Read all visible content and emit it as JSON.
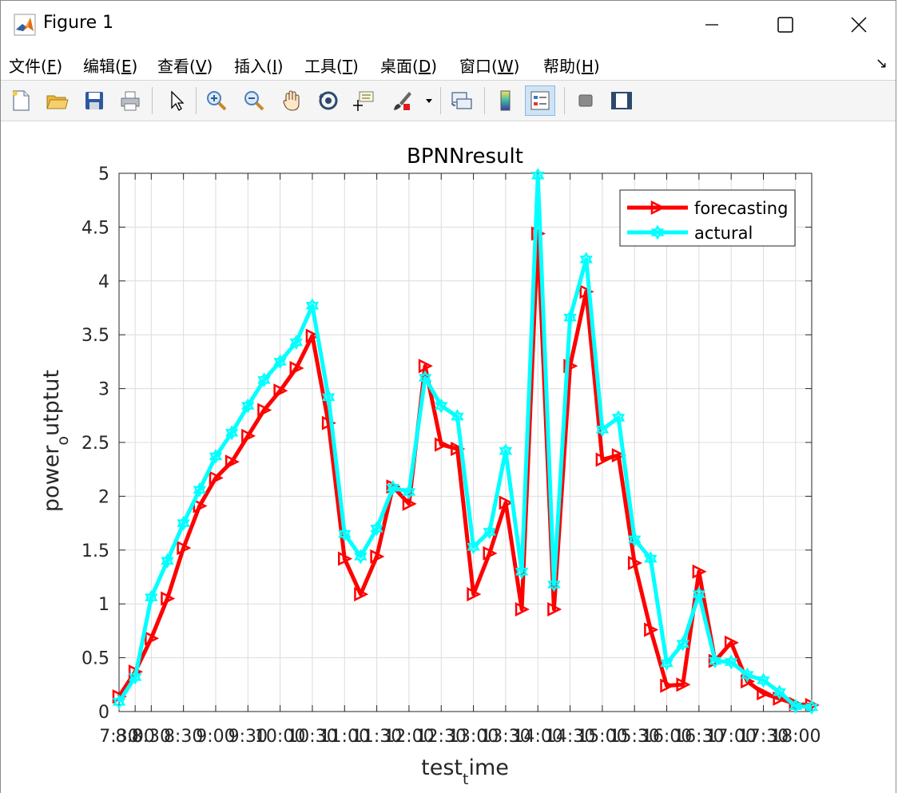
{
  "window": {
    "title": "Figure 1",
    "minimize_icon": "minimize-icon",
    "maximize_icon": "maximize-icon",
    "close_icon": "close-icon"
  },
  "menu": {
    "items": [
      {
        "label": "文件(",
        "key": "F",
        "suffix": ")"
      },
      {
        "label": "编辑(",
        "key": "E",
        "suffix": ")"
      },
      {
        "label": "查看(",
        "key": "V",
        "suffix": ")"
      },
      {
        "label": "插入(",
        "key": "I",
        "suffix": ")"
      },
      {
        "label": "工具(",
        "key": "T",
        "suffix": ")"
      },
      {
        "label": "桌面(",
        "key": "D",
        "suffix": ")"
      },
      {
        "label": "窗口(",
        "key": "W",
        "suffix": ")"
      },
      {
        "label": "帮助(",
        "key": "H",
        "suffix": ")"
      }
    ],
    "dock_glyph": "↘"
  },
  "toolbar": {
    "buttons": [
      "new-figure-icon",
      "open-file-icon",
      "save-icon",
      "print-icon",
      "edit-plot-icon",
      "zoom-in-icon",
      "zoom-out-icon",
      "pan-icon",
      "rotate-3d-icon",
      "data-cursor-icon",
      "brush-icon",
      "link-plot-icon",
      "colorbar-icon",
      "legend-icon",
      "hide-plot-tools-icon",
      "show-plot-tools-icon"
    ]
  },
  "chart_data": {
    "type": "line",
    "title": "BPNNresult",
    "xlabel_main": "test",
    "xlabel_sub": "t",
    "xlabel_rest": "ime",
    "ylabel_main": "power",
    "ylabel_sub": "o",
    "ylabel_rest": "utptut",
    "ylim": [
      0,
      5
    ],
    "xlim": [
      1,
      44
    ],
    "yticks": [
      "0",
      "0.5",
      "1",
      "1.5",
      "2",
      "2.5",
      "3",
      "3.5",
      "4",
      "4.5",
      "5"
    ],
    "xticks": [
      {
        "x": 1,
        "label": "7:30"
      },
      {
        "x": 2,
        "label": "8:00"
      },
      {
        "x": 3,
        "label": "8:30"
      },
      {
        "x": 5,
        "label": "8:30"
      },
      {
        "x": 7,
        "label": "9:00"
      },
      {
        "x": 9,
        "label": "9:30"
      },
      {
        "x": 11,
        "label": "10:00"
      },
      {
        "x": 13,
        "label": "10:30"
      },
      {
        "x": 15,
        "label": "11:00"
      },
      {
        "x": 17,
        "label": "11:30"
      },
      {
        "x": 19,
        "label": "12:00"
      },
      {
        "x": 21,
        "label": "12:30"
      },
      {
        "x": 23,
        "label": "13:00"
      },
      {
        "x": 25,
        "label": "13:30"
      },
      {
        "x": 27,
        "label": "14:00"
      },
      {
        "x": 29,
        "label": "14:30"
      },
      {
        "x": 31,
        "label": "15:00"
      },
      {
        "x": 33,
        "label": "15:30"
      },
      {
        "x": 35,
        "label": "16:00"
      },
      {
        "x": 37,
        "label": "16:30"
      },
      {
        "x": 39,
        "label": "17:00"
      },
      {
        "x": 41,
        "label": "17:30"
      },
      {
        "x": 43,
        "label": "18:00"
      }
    ],
    "grid": true,
    "legend_position": "top-right",
    "series": [
      {
        "name": "forecasting",
        "color": "#ff0000",
        "marker": "triangle-right",
        "x": [
          1,
          2,
          3,
          4,
          5,
          6,
          7,
          8,
          9,
          10,
          11,
          12,
          13,
          14,
          15,
          16,
          17,
          18,
          19,
          20,
          21,
          22,
          23,
          24,
          25,
          26,
          27,
          28,
          29,
          30,
          31,
          32,
          33,
          34,
          35,
          36,
          37,
          38,
          39,
          40,
          41,
          42,
          43,
          44
        ],
        "values": [
          0.14,
          0.37,
          0.68,
          1.05,
          1.52,
          1.91,
          2.17,
          2.32,
          2.56,
          2.8,
          2.98,
          3.19,
          3.49,
          2.68,
          1.42,
          1.09,
          1.44,
          2.09,
          1.93,
          3.21,
          2.48,
          2.44,
          1.09,
          1.47,
          1.94,
          0.95,
          4.44,
          0.95,
          3.21,
          3.9,
          2.34,
          2.38,
          1.38,
          0.76,
          0.24,
          0.25,
          1.3,
          0.47,
          0.64,
          0.28,
          0.17,
          0.12,
          0.07,
          0.06
        ]
      },
      {
        "name": "actural",
        "color": "#00ffff",
        "marker": "hexagram",
        "x": [
          1,
          2,
          3,
          4,
          5,
          6,
          7,
          8,
          9,
          10,
          11,
          12,
          13,
          14,
          15,
          16,
          17,
          18,
          19,
          20,
          21,
          22,
          23,
          24,
          25,
          26,
          27,
          28,
          29,
          30,
          31,
          32,
          33,
          34,
          35,
          36,
          37,
          38,
          39,
          40,
          41,
          42,
          43,
          44
        ],
        "values": [
          0.09,
          0.32,
          1.06,
          1.4,
          1.75,
          2.06,
          2.37,
          2.59,
          2.84,
          3.08,
          3.25,
          3.43,
          3.77,
          2.92,
          1.65,
          1.44,
          1.7,
          2.08,
          2.04,
          3.1,
          2.84,
          2.74,
          1.53,
          1.67,
          2.42,
          1.3,
          4.98,
          1.18,
          3.66,
          4.2,
          2.62,
          2.73,
          1.6,
          1.42,
          0.45,
          0.63,
          1.09,
          0.47,
          0.46,
          0.34,
          0.29,
          0.18,
          0.05,
          0.04
        ]
      }
    ]
  }
}
